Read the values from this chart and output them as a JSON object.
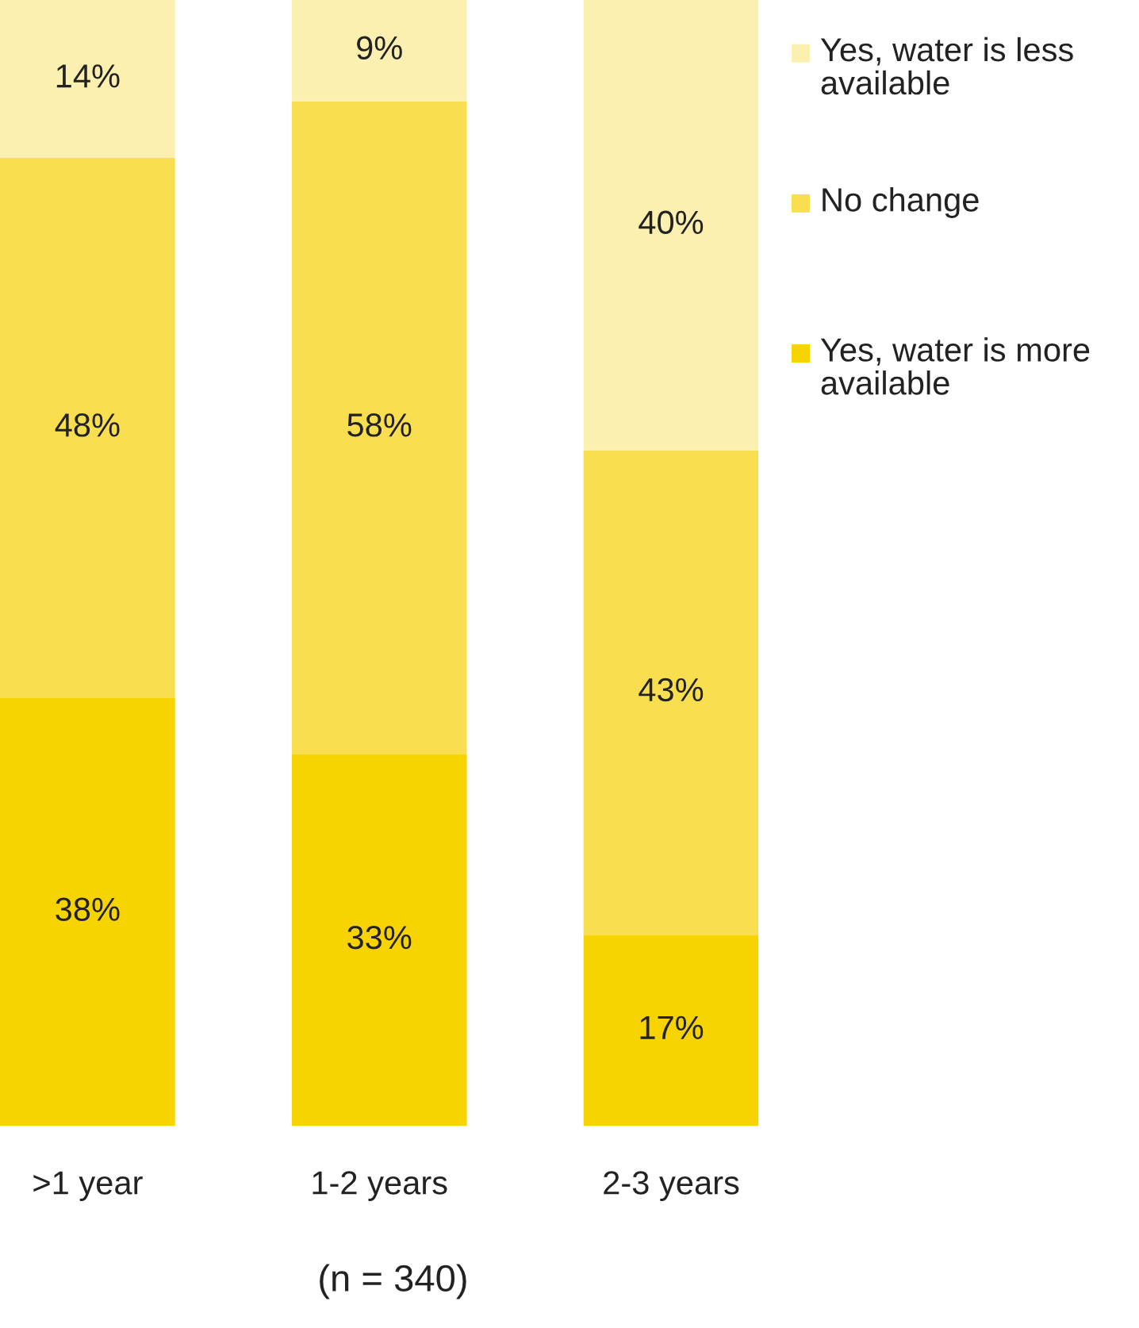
{
  "chart_data": {
    "type": "bar",
    "stacked": true,
    "tick_labels": "x",
    "grid": false,
    "legend": "top right",
    "categories": [
      ">1 year",
      "1-2 years",
      "2-3 years"
    ],
    "series": [
      {
        "name": "Yes, water is more available",
        "color": "#f7d300",
        "values": [
          38,
          33,
          17
        ],
        "value_labels": [
          "38%",
          "33%",
          "17%"
        ]
      },
      {
        "name": "No change",
        "color": "#f9df4f",
        "values": [
          48,
          58,
          43
        ],
        "value_labels": [
          "48%",
          "58%",
          "43%"
        ]
      },
      {
        "name": "Yes, water is less available",
        "color": "#fbf0b0",
        "values": [
          14,
          9,
          40
        ],
        "value_labels": [
          "14%",
          "9%",
          "40%"
        ]
      }
    ],
    "annotations": [
      "(n = 340)"
    ]
  }
}
